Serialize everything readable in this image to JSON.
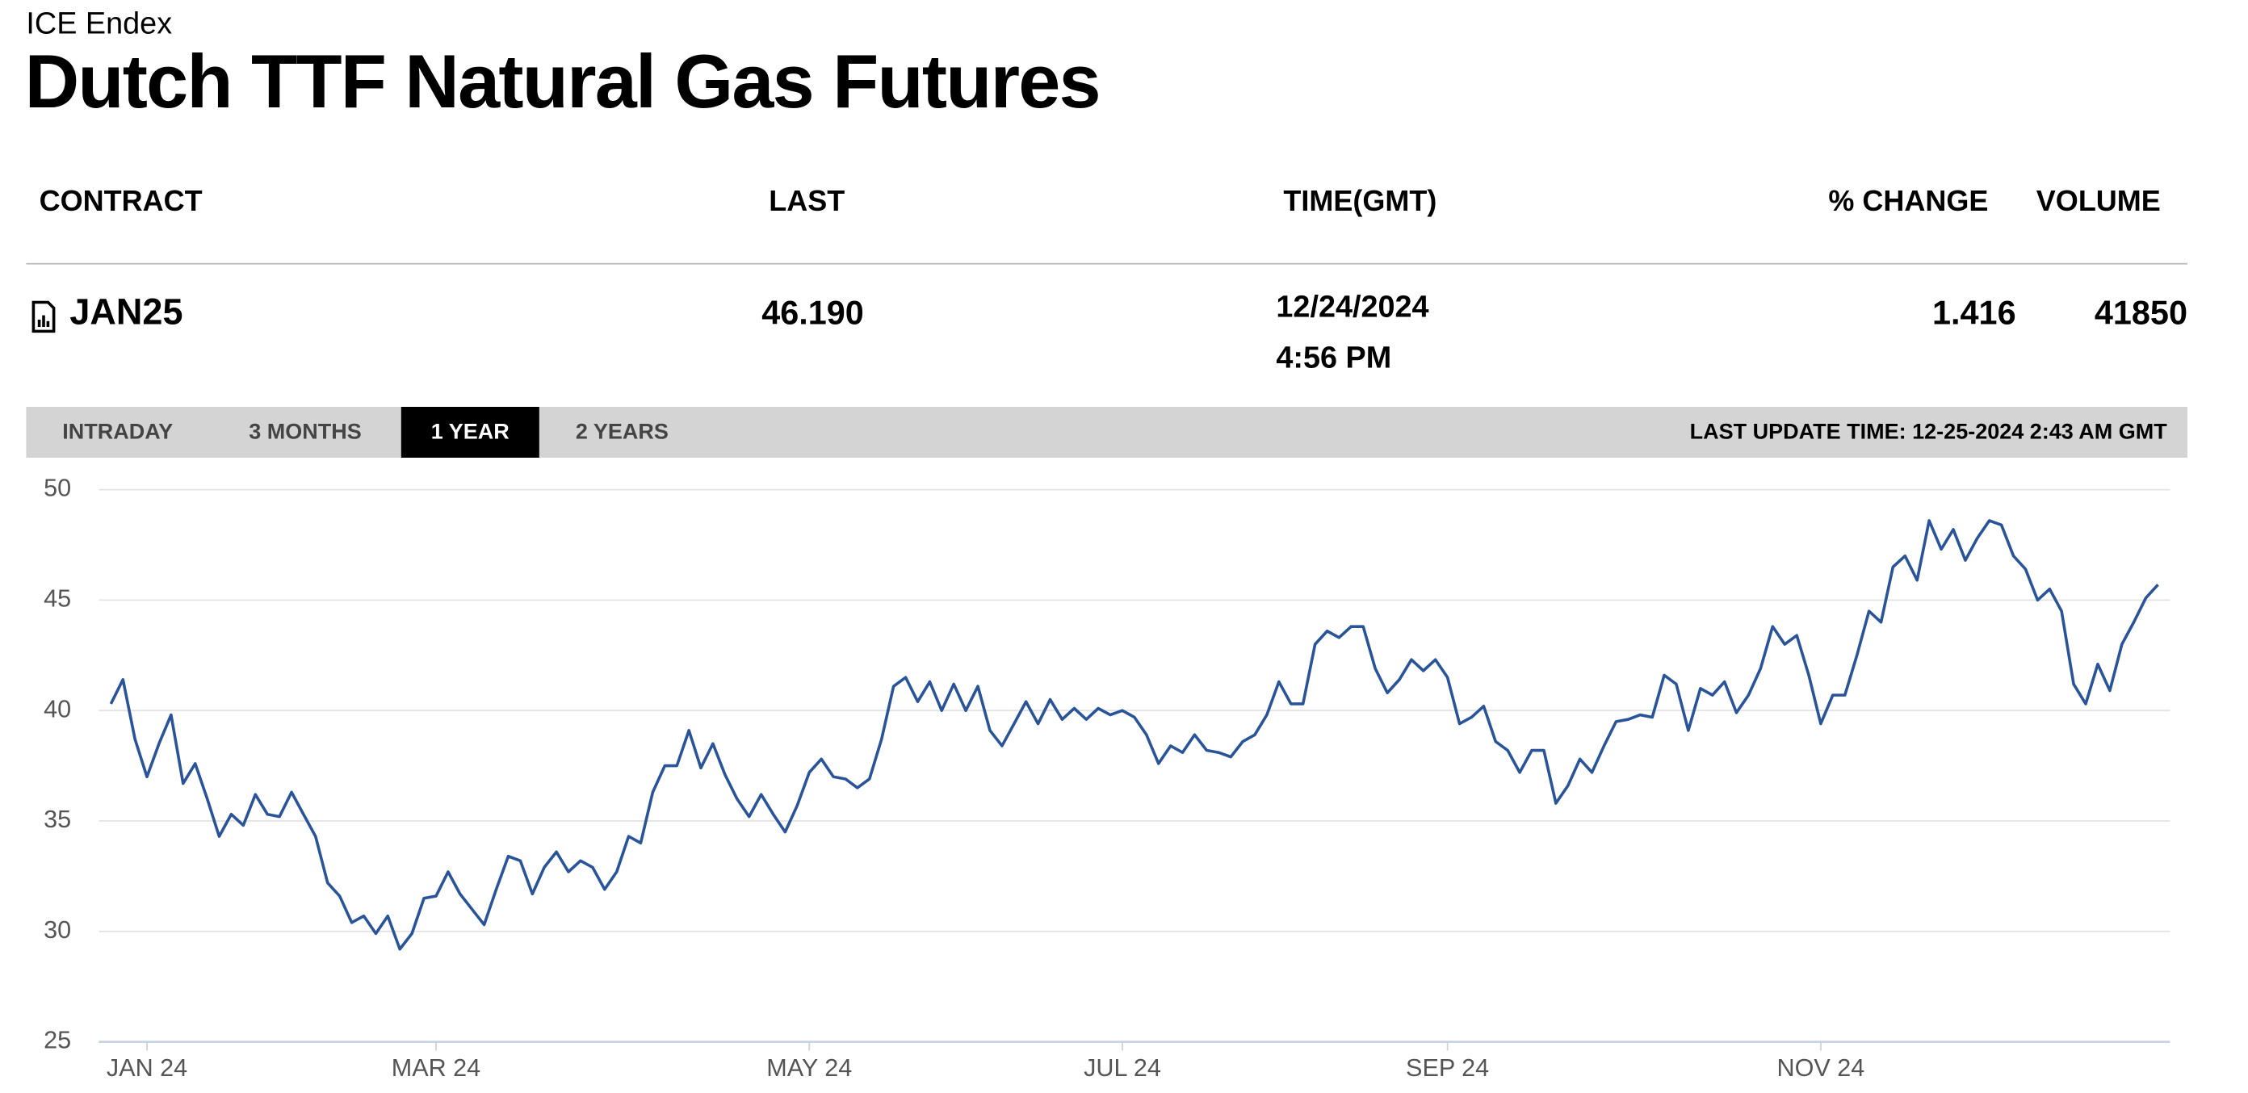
{
  "header": {
    "exchange": "ICE Endex",
    "title": "Dutch TTF Natural Gas Futures"
  },
  "table": {
    "columns": [
      "CONTRACT",
      "LAST",
      "TIME(GMT)",
      "% CHANGE",
      "VOLUME"
    ],
    "rows": [
      [
        "JAN25",
        "46.190",
        "12/24/2024",
        "4:56 PM",
        "1.416",
        "41850"
      ]
    ]
  },
  "tabs": [
    "INTRADAY",
    "3 MONTHS",
    "1 YEAR",
    "2 YEARS"
  ],
  "active_tab": "1 YEAR",
  "last_update": "LAST UPDATE TIME: 12-25-2024 2:43 AM GMT",
  "chart_data": {
    "type": "line",
    "color": "#2a549a",
    "grid": true,
    "xlim": [
      -1,
      171
    ],
    "ylim": [
      25,
      50
    ],
    "yticks": [
      25,
      30,
      35,
      40,
      45,
      50
    ],
    "xticks": [
      {
        "value": 3,
        "label": "JAN 24"
      },
      {
        "value": 27,
        "label": "MAR 24"
      },
      {
        "value": 58,
        "label": "MAY 24"
      },
      {
        "value": 84,
        "label": "JUL 24"
      },
      {
        "value": 111,
        "label": "SEP 24"
      },
      {
        "value": 142,
        "label": "NOV 24"
      }
    ],
    "values": [
      40.3,
      41.4,
      38.7,
      37.0,
      38.5,
      39.8,
      36.7,
      37.6,
      36.0,
      34.3,
      35.3,
      34.8,
      36.2,
      35.3,
      35.2,
      36.3,
      35.3,
      34.3,
      32.2,
      31.6,
      30.4,
      30.7,
      29.9,
      30.7,
      29.2,
      29.9,
      31.5,
      31.6,
      32.7,
      31.7,
      31.0,
      30.3,
      31.9,
      33.4,
      33.2,
      31.7,
      32.9,
      33.6,
      32.7,
      33.2,
      32.9,
      31.9,
      32.7,
      34.3,
      34.0,
      36.3,
      37.5,
      37.5,
      39.1,
      37.4,
      38.5,
      37.1,
      36.0,
      35.2,
      36.2,
      35.3,
      34.5,
      35.7,
      37.2,
      37.8,
      37.0,
      36.9,
      36.5,
      36.9,
      38.7,
      41.1,
      41.5,
      40.4,
      41.3,
      40.0,
      41.2,
      40.0,
      41.1,
      39.1,
      38.4,
      39.4,
      40.4,
      39.4,
      40.5,
      39.6,
      40.1,
      39.6,
      40.1,
      39.8,
      40.0,
      39.7,
      38.9,
      37.6,
      38.4,
      38.1,
      38.9,
      38.2,
      38.1,
      37.9,
      38.6,
      38.9,
      39.8,
      41.3,
      40.3,
      40.3,
      43.0,
      43.6,
      43.3,
      43.8,
      43.8,
      41.9,
      40.8,
      41.4,
      42.3,
      41.8,
      42.3,
      41.5,
      39.4,
      39.7,
      40.2,
      38.6,
      38.2,
      37.2,
      38.2,
      38.2,
      35.8,
      36.6,
      37.8,
      37.2,
      38.4,
      39.5,
      39.6,
      39.8,
      39.7,
      41.6,
      41.2,
      39.1,
      41.0,
      40.7,
      41.3,
      39.9,
      40.7,
      41.9,
      43.8,
      43.0,
      43.4,
      41.6,
      39.4,
      40.7,
      40.7,
      42.5,
      44.5,
      44.0,
      46.5,
      47.0,
      45.9,
      48.6,
      47.3,
      48.2,
      46.8,
      47.8,
      48.6,
      48.4,
      47.0,
      46.4,
      45.0,
      45.5,
      44.5,
      41.2,
      40.3,
      42.1,
      40.9,
      43.0,
      44.0,
      45.1,
      45.7
    ]
  }
}
